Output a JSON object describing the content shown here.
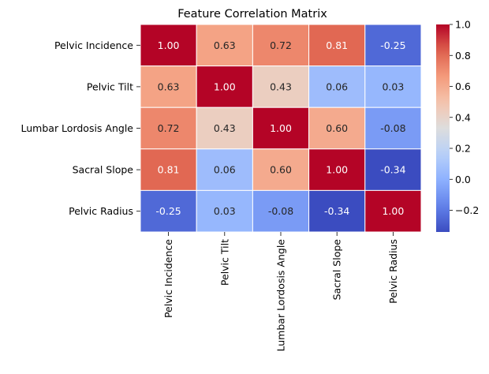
{
  "chart_data": {
    "type": "heatmap",
    "title": "Feature Correlation Matrix",
    "row_labels": [
      "Pelvic Incidence",
      "Pelvic Tilt",
      "Lumbar Lordosis Angle",
      "Sacral Slope",
      "Pelvic Radius"
    ],
    "col_labels": [
      "Pelvic Incidence",
      "Pelvic Tilt",
      "Lumbar Lordosis Angle",
      "Sacral Slope",
      "Pelvic Radius"
    ],
    "values": [
      [
        1.0,
        0.63,
        0.72,
        0.81,
        -0.25
      ],
      [
        0.63,
        1.0,
        0.43,
        0.06,
        0.03
      ],
      [
        0.72,
        0.43,
        1.0,
        0.6,
        -0.08
      ],
      [
        0.81,
        0.06,
        0.6,
        1.0,
        -0.34
      ],
      [
        -0.25,
        0.03,
        -0.08,
        -0.34,
        1.0
      ]
    ],
    "value_format_decimals": 2,
    "colormap": "coolwarm",
    "colorbar": {
      "range": [
        -0.34,
        1.0
      ],
      "ticks": [
        1.0,
        0.8,
        0.6,
        0.4,
        0.2,
        0.0,
        -0.2
      ],
      "tick_labels": [
        "1.0",
        "0.8",
        "0.6",
        "0.4",
        "0.2",
        "0.0",
        "−0.2"
      ]
    },
    "cell_border_color": "#ffffff"
  }
}
